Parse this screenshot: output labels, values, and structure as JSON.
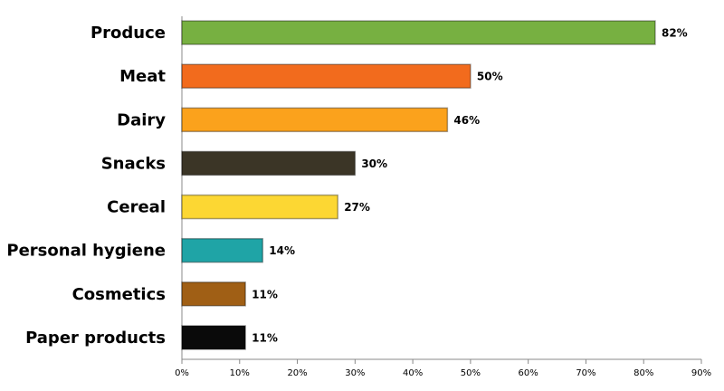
{
  "chart_data": {
    "type": "bar",
    "orientation": "horizontal",
    "categories": [
      "Produce",
      "Meat",
      "Dairy",
      "Snacks",
      "Cereal",
      "Personal hygiene",
      "Cosmetics",
      "Paper products"
    ],
    "values": [
      82,
      50,
      46,
      30,
      27,
      14,
      11,
      11
    ],
    "value_labels": [
      "82%",
      "50%",
      "46%",
      "30%",
      "27%",
      "14%",
      "11%",
      "11%"
    ],
    "colors": [
      "#77b041",
      "#f26b1d",
      "#fba21c",
      "#3b3526",
      "#fcd733",
      "#1fa4a6",
      "#a05f15",
      "#0a0a0a"
    ],
    "xlim": [
      0,
      90
    ],
    "xticks": [
      {
        "value": 0,
        "label": "0%"
      },
      {
        "value": 10,
        "label": "10%"
      },
      {
        "value": 20,
        "label": "20%"
      },
      {
        "value": 30,
        "label": "30%"
      },
      {
        "value": 40,
        "label": "40%"
      },
      {
        "value": 50,
        "label": "50%"
      },
      {
        "value": 60,
        "label": "60%"
      },
      {
        "value": 70,
        "label": "70%"
      },
      {
        "value": 80,
        "label": "80%"
      },
      {
        "value": 90,
        "label": "90%"
      }
    ]
  }
}
